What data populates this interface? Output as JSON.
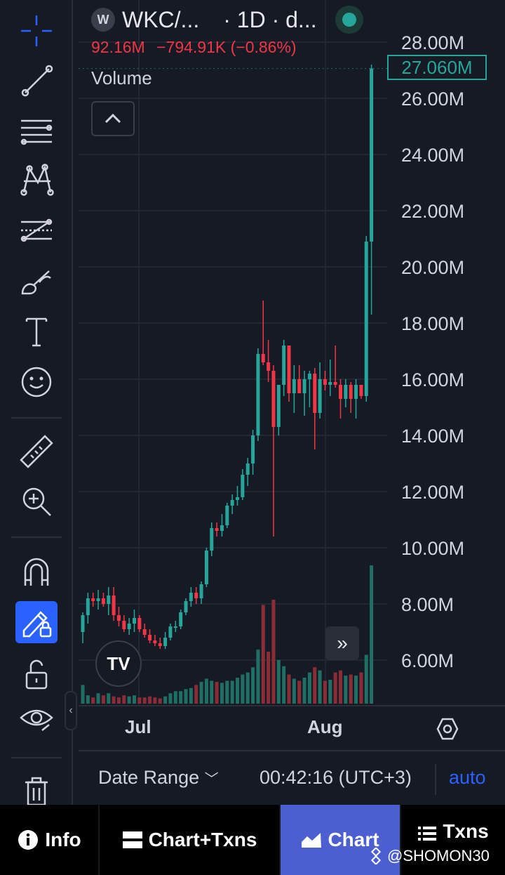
{
  "symbol": {
    "logo_letter": "W",
    "title": "WKC/...",
    "interval": "· 1D · d...",
    "value": "92.16M",
    "change": "−794.91K (−0.86%)"
  },
  "volume_label": "Volume",
  "price_axis": {
    "ticks": [
      "28.00M",
      "26.00M",
      "24.00M",
      "22.00M",
      "20.00M",
      "18.00M",
      "16.00M",
      "14.00M",
      "12.00M",
      "10.00M",
      "8.00M",
      "6.00M"
    ],
    "last_price": "27.060M"
  },
  "time_axis": {
    "labels": [
      "Jul",
      "Aug"
    ]
  },
  "range_bar": {
    "date_range": "Date Range",
    "clock": "00:42:16 (UTC+3)",
    "auto": "auto"
  },
  "tabs": [
    {
      "label": "Info",
      "icon": "info-icon"
    },
    {
      "label": "Chart+Txns",
      "icon": "split-view-icon"
    },
    {
      "label": "Chart",
      "icon": "area-chart-icon"
    },
    {
      "label": "Txns",
      "icon": "list-icon"
    }
  ],
  "watermark": "@SHOMON30",
  "tv_logo": "TV",
  "colors": {
    "up": "#26a69a",
    "down": "#f23645",
    "accent": "#2962ff",
    "background": "#161a25"
  },
  "chart_data": {
    "type": "candlestick",
    "y_axis_unit": "market cap",
    "ylim": [
      4.4,
      28.6
    ],
    "candles_ohlc_millions": [
      [
        7.0,
        7.7,
        6.6,
        7.6
      ],
      [
        7.6,
        8.4,
        7.3,
        8.2
      ],
      [
        8.2,
        8.4,
        7.9,
        8.1
      ],
      [
        8.1,
        8.5,
        7.8,
        8.2
      ],
      [
        8.2,
        8.4,
        7.9,
        8.0
      ],
      [
        8.0,
        8.6,
        7.6,
        8.3
      ],
      [
        8.3,
        8.6,
        7.4,
        7.6
      ],
      [
        7.6,
        7.9,
        7.2,
        7.4
      ],
      [
        7.4,
        7.6,
        7.0,
        7.1
      ],
      [
        7.1,
        7.5,
        6.9,
        7.3
      ],
      [
        7.3,
        7.8,
        7.0,
        7.5
      ],
      [
        7.5,
        7.6,
        7.0,
        7.1
      ],
      [
        7.1,
        7.3,
        6.8,
        6.9
      ],
      [
        6.9,
        7.1,
        6.6,
        6.7
      ],
      [
        6.7,
        6.9,
        6.5,
        6.6
      ],
      [
        6.6,
        6.8,
        6.4,
        6.5
      ],
      [
        6.5,
        7.0,
        6.4,
        6.8
      ],
      [
        6.8,
        7.3,
        6.7,
        7.2
      ],
      [
        7.2,
        7.4,
        7.0,
        7.2
      ],
      [
        7.2,
        7.8,
        7.1,
        7.7
      ],
      [
        7.7,
        8.2,
        7.6,
        8.1
      ],
      [
        8.1,
        8.6,
        7.9,
        8.4
      ],
      [
        8.4,
        8.6,
        8.0,
        8.2
      ],
      [
        8.2,
        8.8,
        8.0,
        8.7
      ],
      [
        8.7,
        10.0,
        8.6,
        9.9
      ],
      [
        9.9,
        10.9,
        9.7,
        10.7
      ],
      [
        10.7,
        10.9,
        10.4,
        10.6
      ],
      [
        10.6,
        11.2,
        10.4,
        10.8
      ],
      [
        10.8,
        11.6,
        10.7,
        11.5
      ],
      [
        11.5,
        11.9,
        11.2,
        11.7
      ],
      [
        11.7,
        12.2,
        11.5,
        11.8
      ],
      [
        11.8,
        12.8,
        11.7,
        12.6
      ],
      [
        12.6,
        13.2,
        12.2,
        13.0
      ],
      [
        13.0,
        14.2,
        12.6,
        14.0
      ],
      [
        14.0,
        17.1,
        13.8,
        16.9
      ],
      [
        16.9,
        18.8,
        16.5,
        16.6
      ],
      [
        16.6,
        17.4,
        15.9,
        16.3
      ],
      [
        16.3,
        16.5,
        10.4,
        14.3
      ],
      [
        14.3,
        15.6,
        14.0,
        15.8
      ],
      [
        15.8,
        17.4,
        15.4,
        17.2
      ],
      [
        17.2,
        17.2,
        15.2,
        15.5
      ],
      [
        15.5,
        16.5,
        14.8,
        16.0
      ],
      [
        16.0,
        16.5,
        15.6,
        15.5
      ],
      [
        15.5,
        16.3,
        14.7,
        16.0
      ],
      [
        16.0,
        16.3,
        15.0,
        16.2
      ],
      [
        16.2,
        16.4,
        13.5,
        14.8
      ],
      [
        14.8,
        16.6,
        14.6,
        16.0
      ],
      [
        16.0,
        16.3,
        15.6,
        15.8
      ],
      [
        15.8,
        16.7,
        15.4,
        15.9
      ],
      [
        15.9,
        17.2,
        15.7,
        15.8
      ],
      [
        15.8,
        16.0,
        14.6,
        15.3
      ],
      [
        15.3,
        16.0,
        15.0,
        15.8
      ],
      [
        15.8,
        15.9,
        14.8,
        15.3
      ],
      [
        15.3,
        16.0,
        14.6,
        15.8
      ],
      [
        15.8,
        15.8,
        15.3,
        15.4
      ],
      [
        15.4,
        21.1,
        15.2,
        20.9
      ],
      [
        20.9,
        27.2,
        18.3,
        27.06
      ]
    ],
    "volume_relative": [
      0.18,
      0.08,
      0.06,
      0.1,
      0.08,
      0.1,
      0.07,
      0.06,
      0.08,
      0.07,
      0.08,
      0.06,
      0.06,
      0.07,
      0.06,
      0.05,
      0.07,
      0.1,
      0.12,
      0.12,
      0.14,
      0.15,
      0.18,
      0.21,
      0.24,
      0.22,
      0.21,
      0.2,
      0.22,
      0.22,
      0.25,
      0.28,
      0.3,
      0.35,
      0.52,
      0.95,
      0.5,
      1.0,
      0.42,
      0.36,
      0.28,
      0.24,
      0.22,
      0.25,
      0.3,
      0.35,
      0.32,
      0.22,
      0.23,
      0.3,
      0.32,
      0.27,
      0.28,
      0.27,
      0.3,
      0.47,
      1.33
    ],
    "y_ticks_millions": [
      28,
      26,
      24,
      22,
      20,
      18,
      16,
      14,
      12,
      10,
      8,
      6
    ],
    "last_price": "27.060M",
    "x_labels": [
      "Jul",
      "Aug"
    ]
  }
}
